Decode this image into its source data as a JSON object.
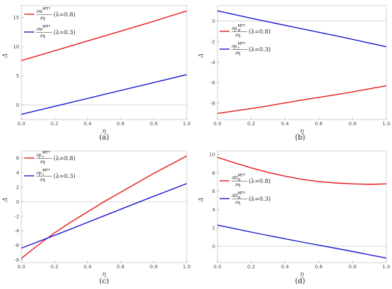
{
  "chart_data": [
    {
      "type": "line",
      "caption": "(a)",
      "xlabel": "η",
      "ylabel": "Δ",
      "xlim": [
        0,
        1
      ],
      "ylim": [
        -2.5,
        17
      ],
      "xticks": [
        0.0,
        0.2,
        0.4,
        0.6,
        0.8,
        1.0
      ],
      "xtick_labels": [
        "0.0",
        "0.2",
        "0.4",
        "0.6",
        "0.8",
        "1.0"
      ],
      "yticks": [
        0,
        5,
        10,
        15
      ],
      "ytick_labels": [
        "0",
        "5",
        "10",
        "15"
      ],
      "legend_position": "top-left",
      "series": [
        {
          "color": "#e41a1c",
          "legend": {
            "num": "∂w",
            "sup": "MT*",
            "den": "∂η",
            "param": "(λ=0.8)"
          },
          "x": [
            0,
            0.25,
            0.5,
            0.75,
            1.0
          ],
          "y": [
            7.6,
            9.7,
            11.8,
            13.9,
            16.1
          ]
        },
        {
          "color": "#1a1acc",
          "legend": {
            "num": "∂w",
            "sup": "MT*",
            "den": "∂η",
            "param": "(λ=0.3)"
          },
          "x": [
            0,
            0.25,
            0.5,
            0.75,
            1.0
          ],
          "y": [
            -1.6,
            0.1,
            1.8,
            3.5,
            5.2
          ]
        }
      ]
    },
    {
      "type": "line",
      "caption": "(b)",
      "xlabel": "η",
      "ylabel": "Δ",
      "xlim": [
        0,
        1
      ],
      "ylim": [
        -9.6,
        1.5
      ],
      "xticks": [
        0.0,
        0.2,
        0.4,
        0.6,
        0.8,
        1.0
      ],
      "xtick_labels": [
        "0.0",
        "0.2",
        "0.4",
        "0.6",
        "0.8",
        "1.0"
      ],
      "yticks": [
        0,
        -2,
        -4,
        -6,
        -8
      ],
      "ytick_labels": [
        "0",
        "-2",
        "-4",
        "-6",
        "-8"
      ],
      "legend_position": "top-left",
      "series": [
        {
          "color": "#e41a1c",
          "legend": {
            "num": "∂p",
            "sub": "d",
            "sup": "MT*",
            "den": "∂η",
            "param": "(λ=0.8)"
          },
          "x": [
            0,
            0.25,
            0.5,
            0.75,
            1.0
          ],
          "y": [
            -9.0,
            -8.4,
            -7.7,
            -7.05,
            -6.3
          ]
        },
        {
          "color": "#1a1acc",
          "legend": {
            "num": "∂p",
            "sub": "r",
            "sup": "MT*",
            "den": "∂η",
            "param": "(λ=0.3)"
          },
          "x": [
            0,
            0.25,
            0.5,
            0.75,
            1.0
          ],
          "y": [
            1.0,
            0.1,
            -0.75,
            -1.6,
            -2.5
          ]
        }
      ]
    },
    {
      "type": "line",
      "caption": "(c)",
      "xlabel": "η",
      "ylabel": "Δ",
      "xlim": [
        0,
        1
      ],
      "ylim": [
        -8.4,
        7.0
      ],
      "xticks": [
        0.0,
        0.2,
        0.4,
        0.6,
        0.8,
        1.0
      ],
      "xtick_labels": [
        "0.0",
        "0.2",
        "0.4",
        "0.6",
        "0.8",
        "1.0"
      ],
      "yticks": [
        6,
        4,
        2,
        0,
        -2,
        -4,
        -6,
        -8
      ],
      "ytick_labels": [
        "6",
        "4",
        "2",
        "0",
        "-2",
        "-4",
        "-6",
        "-8"
      ],
      "legend_position": "top-left",
      "series": [
        {
          "color": "#e41a1c",
          "legend": {
            "num": "∂p",
            "sub": "r",
            "sup": "MT*",
            "den": "∂η",
            "param": "(λ=0.8)"
          },
          "x": [
            0,
            0.1,
            0.2,
            0.3,
            0.4,
            0.5,
            0.6,
            0.7,
            0.8,
            0.9,
            1.0
          ],
          "y": [
            -7.8,
            -6.0,
            -4.3,
            -2.8,
            -1.4,
            0.0,
            1.3,
            2.6,
            3.9,
            5.1,
            6.3
          ]
        },
        {
          "color": "#1a1acc",
          "legend": {
            "num": "∂p",
            "sub": "r",
            "sup": "MT*",
            "den": "∂η",
            "param": "(λ=0.3)"
          },
          "x": [
            0,
            0.25,
            0.5,
            0.75,
            1.0
          ],
          "y": [
            -6.4,
            -4.2,
            -1.95,
            0.3,
            2.5
          ]
        }
      ]
    },
    {
      "type": "line",
      "caption": "(d)",
      "xlabel": "η",
      "ylabel": "Δ",
      "xlim": [
        0,
        1
      ],
      "ylim": [
        -1.8,
        10.4
      ],
      "xticks": [
        0.0,
        0.2,
        0.4,
        0.6,
        0.8,
        1.0
      ],
      "xtick_labels": [
        "0.0",
        "0.2",
        "0.4",
        "0.6",
        "0.8",
        "1.0"
      ],
      "yticks": [
        10,
        8,
        6,
        4,
        2,
        0
      ],
      "ytick_labels": [
        "10",
        "8",
        "6",
        "4",
        "2",
        "0"
      ],
      "legend_position": "top-left",
      "series": [
        {
          "color": "#e41a1c",
          "legend": {
            "num": "∂D",
            "sub": "d",
            "sup": "MT*",
            "den": "∂η",
            "param": "(λ=0.8)"
          },
          "x": [
            0,
            0.1,
            0.2,
            0.3,
            0.4,
            0.5,
            0.6,
            0.7,
            0.8,
            0.9,
            1.0
          ],
          "y": [
            9.7,
            9.1,
            8.55,
            8.05,
            7.65,
            7.3,
            7.05,
            6.9,
            6.8,
            6.75,
            6.8
          ]
        },
        {
          "color": "#1a1acc",
          "legend": {
            "num": "∂D",
            "sub": "d",
            "sup": "MT*",
            "den": "∂η",
            "param": "(λ=0.3)"
          },
          "x": [
            0,
            0.25,
            0.5,
            0.75,
            1.0
          ],
          "y": [
            2.3,
            1.35,
            0.45,
            -0.4,
            -1.3
          ]
        }
      ]
    }
  ]
}
